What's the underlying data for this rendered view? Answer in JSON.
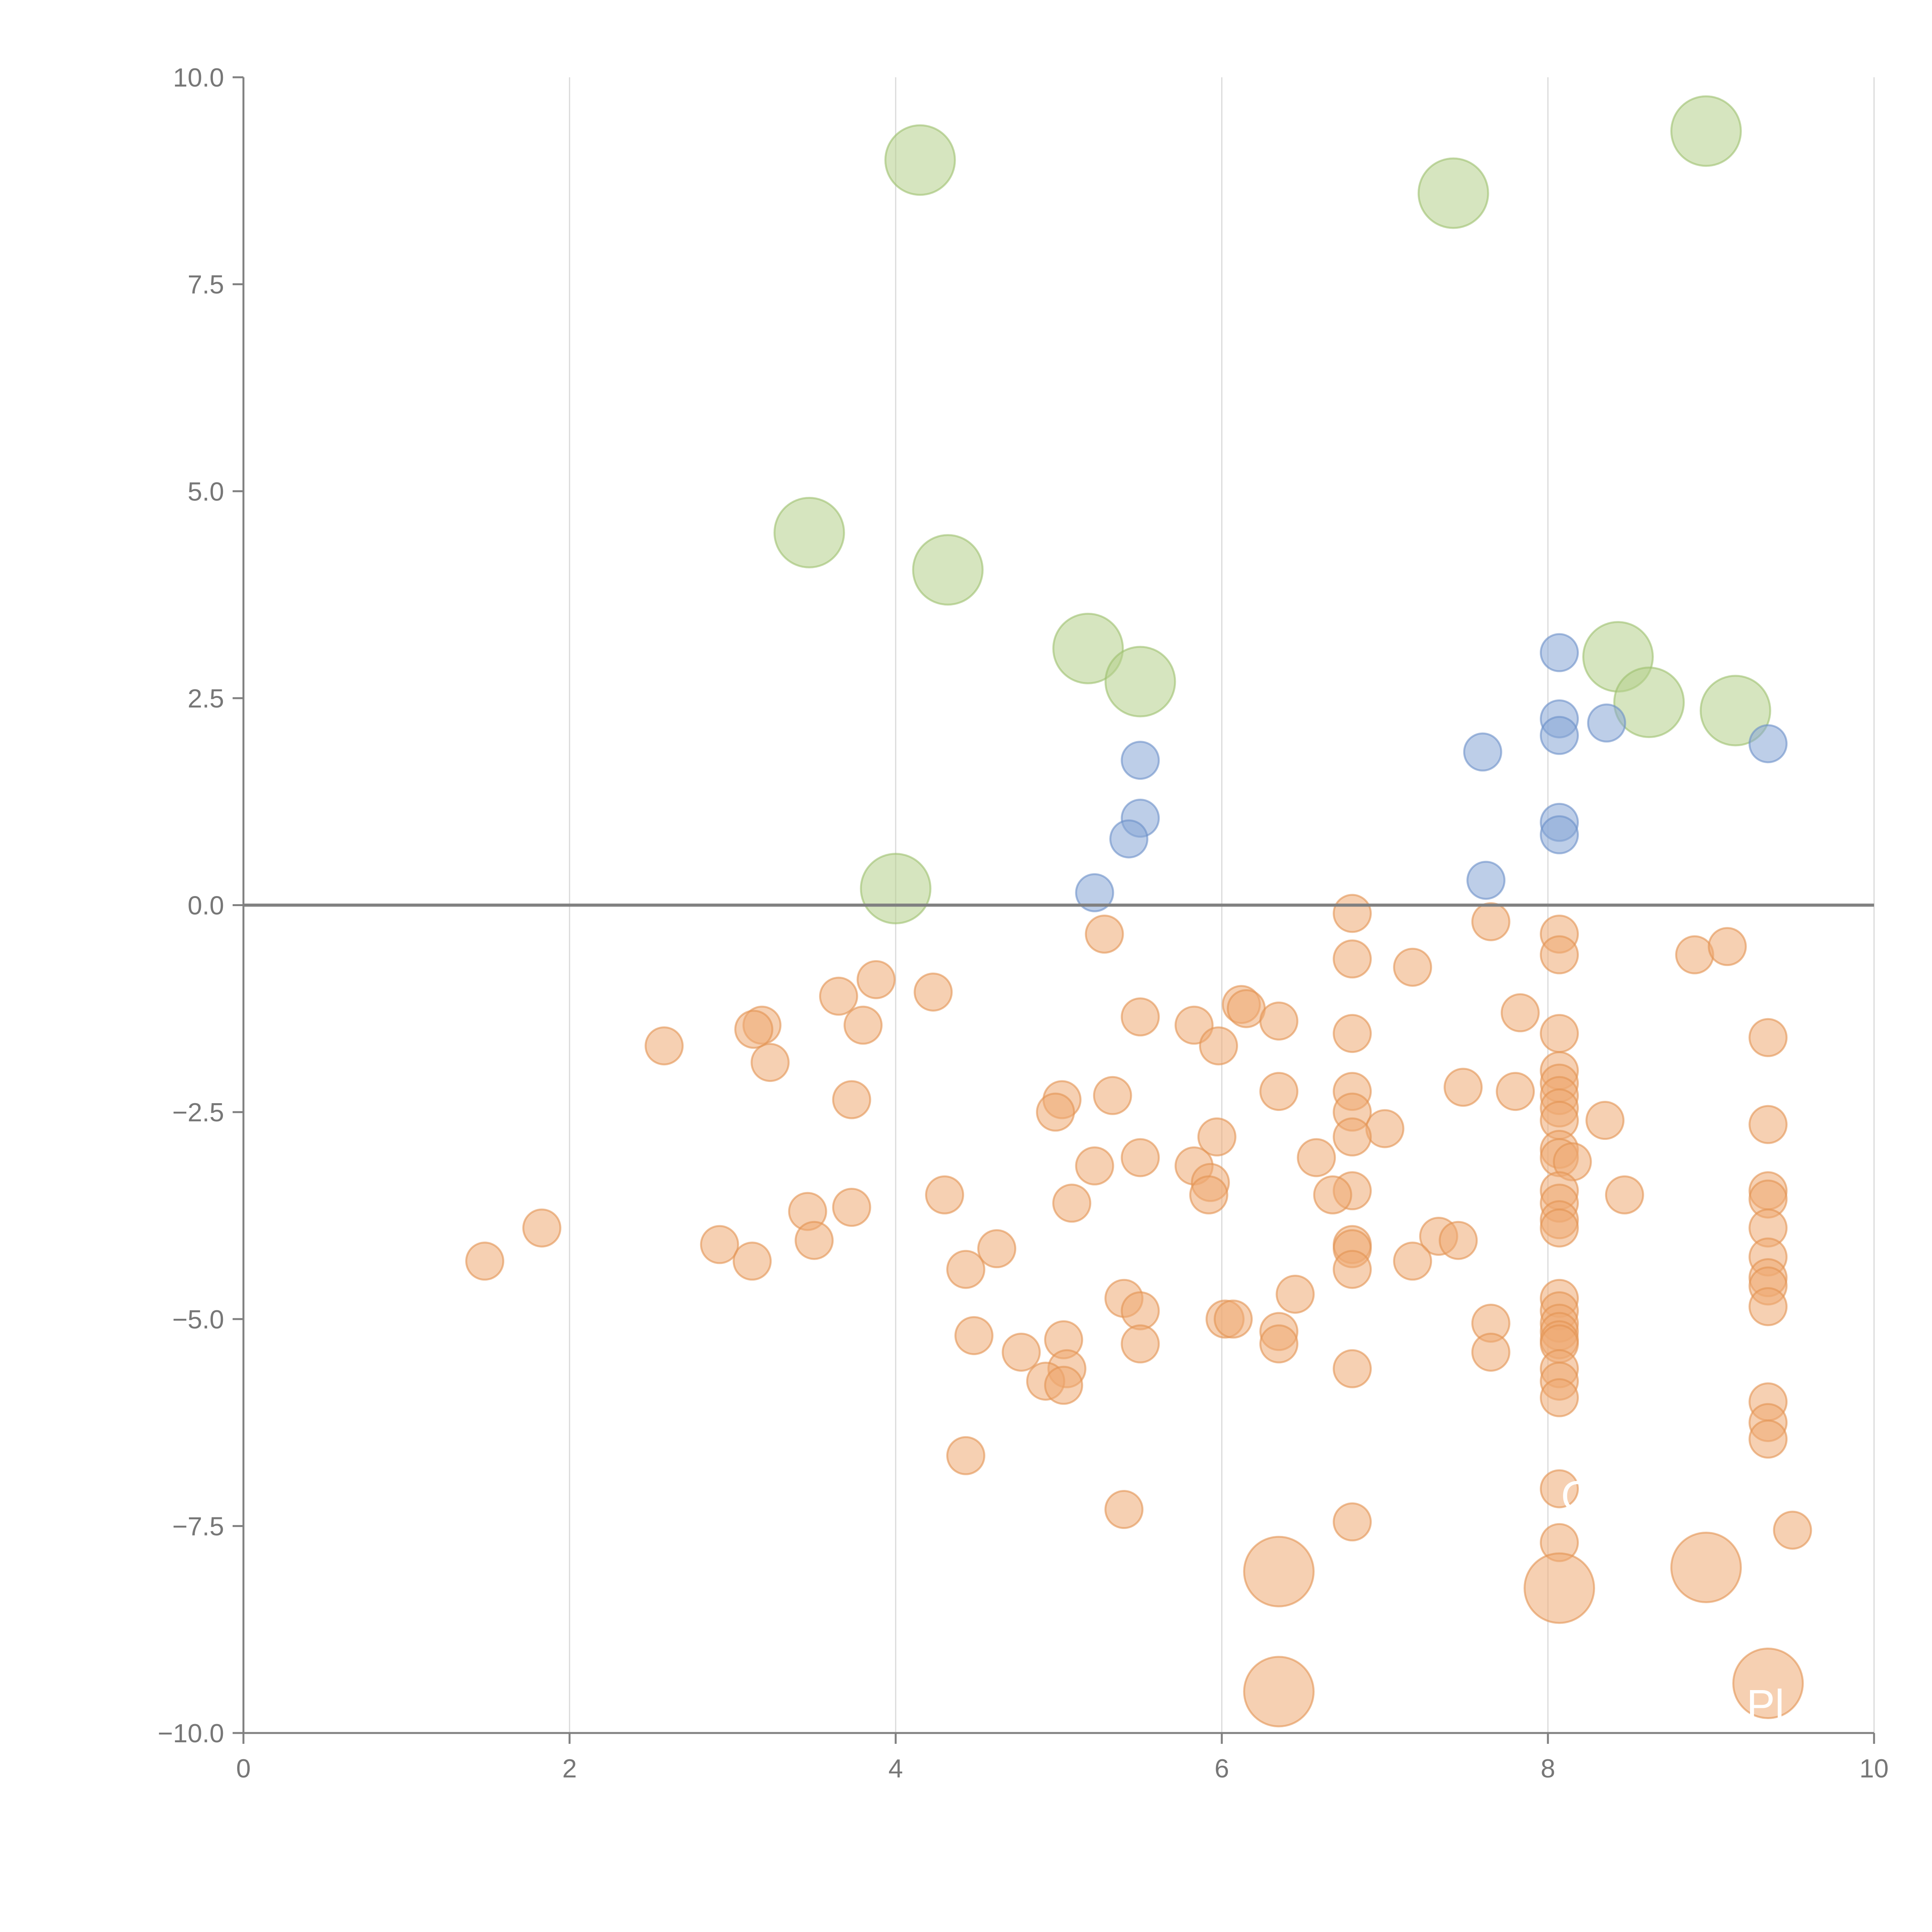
{
  "chart_data": {
    "type": "scatter",
    "title": "",
    "xlabel": "",
    "ylabel": "",
    "xlim": [
      0,
      10
    ],
    "ylim": [
      -10,
      10
    ],
    "grid": "vertical",
    "x_ticks": [
      "0",
      "2",
      "4",
      "6",
      "8",
      "10"
    ],
    "y_ticks": [
      "10.0",
      "7.5",
      "5.0",
      "2.5",
      "0.0",
      "−2.5",
      "−5.0",
      "−7.5",
      "−10.0"
    ],
    "x_tick_values": [
      0,
      2,
      4,
      6,
      8,
      10
    ],
    "y_tick_values": [
      10,
      7.5,
      5,
      2.5,
      0,
      -2.5,
      -5,
      -7.5,
      -10
    ],
    "reference_line_y": 0,
    "colors": {
      "green": "#b5d08a",
      "blue": "#86a5d6",
      "orange": "#eeaa72",
      "green_stroke": "#9dbf6e",
      "blue_stroke": "#6b8fc8",
      "orange_stroke": "#e29352"
    },
    "series": [
      {
        "name": "green",
        "color": "#b5d08a",
        "size": "large",
        "points": [
          [
            4.15,
            9.0
          ],
          [
            7.42,
            8.6
          ],
          [
            8.97,
            9.35
          ],
          [
            3.47,
            4.5
          ],
          [
            4.32,
            4.05
          ],
          [
            5.18,
            3.1
          ],
          [
            5.5,
            2.7
          ],
          [
            8.43,
            3.0
          ],
          [
            8.62,
            2.45
          ],
          [
            9.15,
            2.35
          ],
          [
            4.0,
            0.2
          ]
        ]
      },
      {
        "name": "blue",
        "color": "#86a5d6",
        "size": "small",
        "points": [
          [
            8.07,
            3.05
          ],
          [
            8.07,
            2.25
          ],
          [
            8.07,
            2.05
          ],
          [
            8.36,
            2.2
          ],
          [
            7.6,
            1.85
          ],
          [
            9.35,
            1.95
          ],
          [
            5.5,
            1.75
          ],
          [
            5.5,
            1.05
          ],
          [
            5.43,
            0.8
          ],
          [
            8.07,
            1.0
          ],
          [
            8.07,
            0.85
          ],
          [
            7.62,
            0.3
          ],
          [
            5.22,
            0.15
          ]
        ]
      },
      {
        "name": "orange",
        "color": "#eeaa72",
        "size": "small",
        "points": [
          [
            6.8,
            -0.1
          ],
          [
            7.65,
            -0.2
          ],
          [
            5.28,
            -0.35
          ],
          [
            8.07,
            -0.35
          ],
          [
            8.07,
            -0.6
          ],
          [
            6.8,
            -0.65
          ],
          [
            7.17,
            -0.75
          ],
          [
            8.9,
            -0.6
          ],
          [
            9.1,
            -0.5
          ],
          [
            3.88,
            -0.9
          ],
          [
            4.23,
            -1.05
          ],
          [
            3.65,
            -1.1
          ],
          [
            6.12,
            -1.2
          ],
          [
            6.15,
            -1.25
          ],
          [
            7.83,
            -1.3
          ],
          [
            5.5,
            -1.35
          ],
          [
            6.35,
            -1.4
          ],
          [
            3.8,
            -1.45
          ],
          [
            3.18,
            -1.45
          ],
          [
            3.13,
            -1.5
          ],
          [
            5.83,
            -1.45
          ],
          [
            6.8,
            -1.55
          ],
          [
            8.07,
            -1.55
          ],
          [
            9.35,
            -1.6
          ],
          [
            2.58,
            -1.7
          ],
          [
            5.98,
            -1.7
          ],
          [
            3.23,
            -1.9
          ],
          [
            8.07,
            -2.0
          ],
          [
            8.07,
            -2.15
          ],
          [
            7.48,
            -2.2
          ],
          [
            7.8,
            -2.25
          ],
          [
            6.35,
            -2.25
          ],
          [
            6.8,
            -2.25
          ],
          [
            8.07,
            -2.3
          ],
          [
            5.33,
            -2.3
          ],
          [
            3.73,
            -2.35
          ],
          [
            5.02,
            -2.35
          ],
          [
            8.07,
            -2.45
          ],
          [
            4.98,
            -2.5
          ],
          [
            6.8,
            -2.5
          ],
          [
            8.07,
            -2.6
          ],
          [
            8.35,
            -2.6
          ],
          [
            9.35,
            -2.65
          ],
          [
            7.0,
            -2.7
          ],
          [
            6.8,
            -2.8
          ],
          [
            5.97,
            -2.8
          ],
          [
            8.07,
            -2.95
          ],
          [
            8.07,
            -3.05
          ],
          [
            5.5,
            -3.05
          ],
          [
            6.58,
            -3.05
          ],
          [
            8.15,
            -3.1
          ],
          [
            5.22,
            -3.15
          ],
          [
            5.83,
            -3.15
          ],
          [
            5.93,
            -3.35
          ],
          [
            9.35,
            -3.45
          ],
          [
            6.8,
            -3.45
          ],
          [
            8.07,
            -3.45
          ],
          [
            4.3,
            -3.5
          ],
          [
            5.92,
            -3.5
          ],
          [
            6.68,
            -3.5
          ],
          [
            8.47,
            -3.5
          ],
          [
            9.35,
            -3.55
          ],
          [
            8.07,
            -3.6
          ],
          [
            5.08,
            -3.6
          ],
          [
            3.46,
            -3.7
          ],
          [
            3.73,
            -3.65
          ],
          [
            8.07,
            -3.8
          ],
          [
            1.83,
            -3.9
          ],
          [
            8.07,
            -3.9
          ],
          [
            9.35,
            -3.9
          ],
          [
            7.33,
            -4.0
          ],
          [
            7.45,
            -4.05
          ],
          [
            2.92,
            -4.1
          ],
          [
            3.5,
            -4.05
          ],
          [
            6.8,
            -4.1
          ],
          [
            6.8,
            -4.15
          ],
          [
            4.62,
            -4.15
          ],
          [
            3.12,
            -4.3
          ],
          [
            1.48,
            -4.3
          ],
          [
            7.17,
            -4.3
          ],
          [
            9.35,
            -4.25
          ],
          [
            4.43,
            -4.4
          ],
          [
            6.8,
            -4.4
          ],
          [
            9.35,
            -4.5
          ],
          [
            9.35,
            -4.6
          ],
          [
            6.45,
            -4.7
          ],
          [
            5.4,
            -4.75
          ],
          [
            8.07,
            -4.75
          ],
          [
            9.35,
            -4.85
          ],
          [
            5.5,
            -4.9
          ],
          [
            8.07,
            -4.9
          ],
          [
            6.02,
            -5.0
          ],
          [
            6.07,
            -5.0
          ],
          [
            8.07,
            -5.05
          ],
          [
            7.65,
            -5.05
          ],
          [
            8.07,
            -5.15
          ],
          [
            6.35,
            -5.15
          ],
          [
            4.48,
            -5.2
          ],
          [
            5.03,
            -5.25
          ],
          [
            8.07,
            -5.25
          ],
          [
            8.07,
            -5.3
          ],
          [
            5.5,
            -5.3
          ],
          [
            6.35,
            -5.3
          ],
          [
            4.77,
            -5.4
          ],
          [
            7.65,
            -5.4
          ],
          [
            8.07,
            -5.6
          ],
          [
            6.8,
            -5.6
          ],
          [
            5.05,
            -5.6
          ],
          [
            4.92,
            -5.75
          ],
          [
            5.03,
            -5.8
          ],
          [
            8.07,
            -5.75
          ],
          [
            8.07,
            -5.95
          ],
          [
            9.35,
            -6.0
          ],
          [
            9.35,
            -6.25
          ],
          [
            9.35,
            -6.45
          ],
          [
            4.43,
            -6.65
          ],
          [
            8.07,
            -7.05
          ],
          [
            5.4,
            -7.3
          ],
          [
            6.8,
            -7.45
          ],
          [
            9.5,
            -7.55
          ],
          [
            8.07,
            -7.7
          ]
        ]
      },
      {
        "name": "orange-large",
        "color": "#eeaa72",
        "size": "large",
        "points": [
          [
            6.35,
            -8.05
          ],
          [
            8.97,
            -8.0
          ],
          [
            8.07,
            -8.25
          ],
          [
            6.35,
            -9.5
          ],
          [
            9.35,
            -9.4
          ]
        ]
      }
    ],
    "annotations": [
      "O",
      "Pl"
    ]
  }
}
